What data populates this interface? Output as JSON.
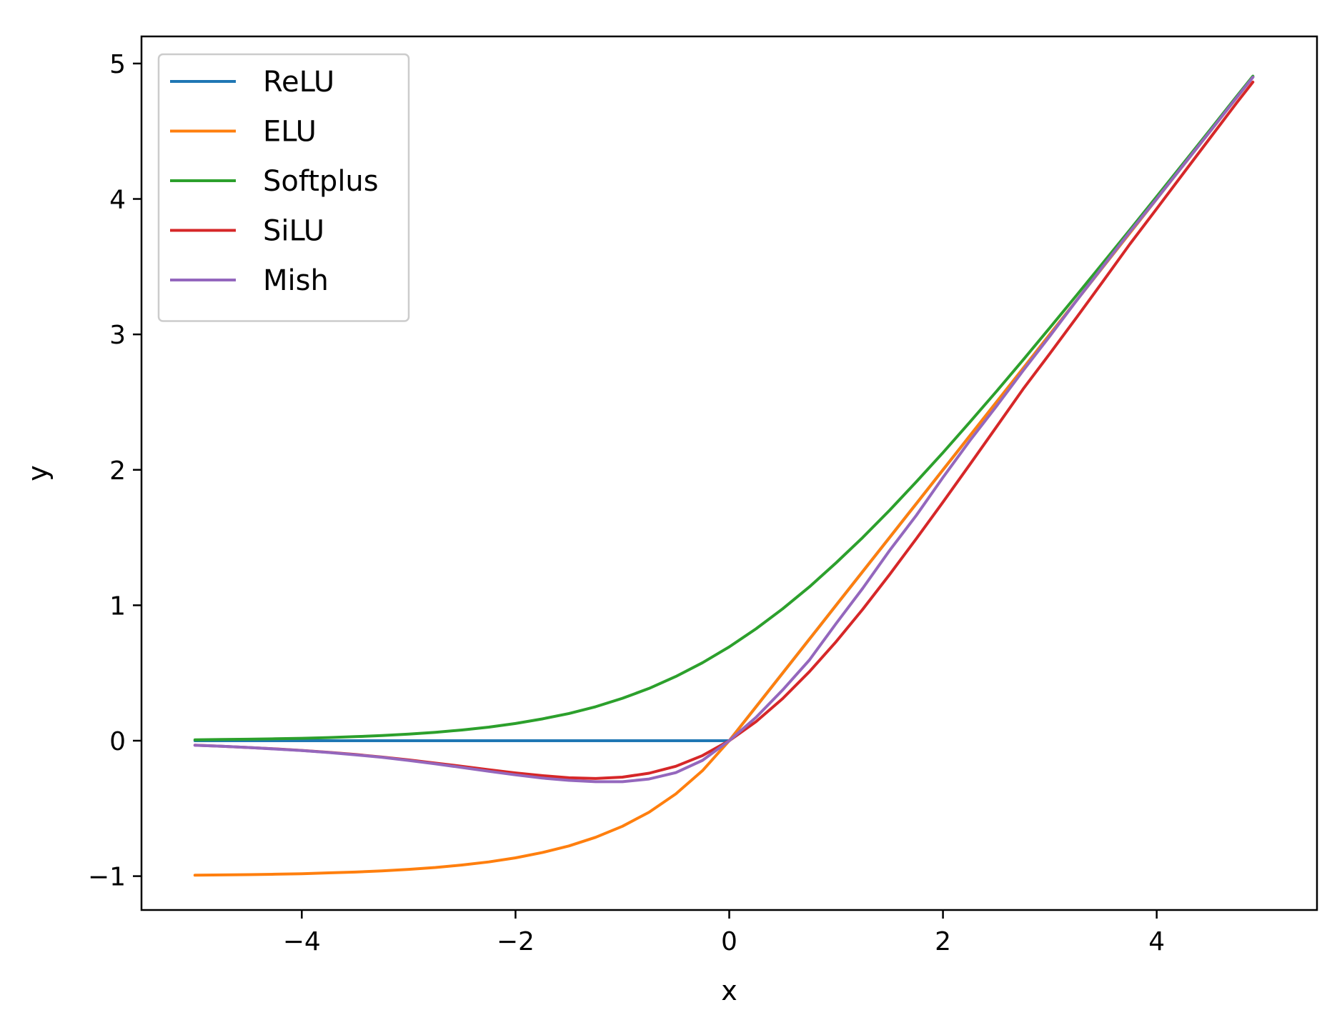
{
  "chart_data": {
    "type": "line",
    "title": "",
    "xlabel": "x",
    "ylabel": "y",
    "xlim": [
      -5.5,
      5.5
    ],
    "ylim": [
      -1.25,
      5.2
    ],
    "xticks": [
      -4,
      -2,
      0,
      2,
      4
    ],
    "yticks": [
      -1,
      0,
      1,
      2,
      3,
      4,
      5
    ],
    "xtick_labels": [
      "−4",
      "−2",
      "0",
      "2",
      "4"
    ],
    "ytick_labels": [
      "−1",
      "0",
      "1",
      "2",
      "3",
      "4",
      "5"
    ],
    "grid": false,
    "legend_position": "upper-left",
    "x": [
      -5.0,
      -4.75,
      -4.5,
      -4.25,
      -4.0,
      -3.75,
      -3.5,
      -3.25,
      -3.0,
      -2.75,
      -2.5,
      -2.25,
      -2.0,
      -1.75,
      -1.5,
      -1.25,
      -1.0,
      -0.75,
      -0.5,
      -0.25,
      0.0,
      0.25,
      0.5,
      0.75,
      1.0,
      1.25,
      1.5,
      1.75,
      2.0,
      2.25,
      2.5,
      2.75,
      3.0,
      3.25,
      3.5,
      3.75,
      4.0,
      4.25,
      4.5,
      4.75,
      4.9
    ],
    "series": [
      {
        "name": "ReLU",
        "color": "#1f77b4",
        "values": [
          0,
          0,
          0,
          0,
          0,
          0,
          0,
          0,
          0,
          0,
          0,
          0,
          0,
          0,
          0,
          0,
          0,
          0,
          0,
          0,
          0,
          0.25,
          0.5,
          0.75,
          1.0,
          1.25,
          1.5,
          1.75,
          2.0,
          2.25,
          2.5,
          2.75,
          3.0,
          3.25,
          3.5,
          3.75,
          4.0,
          4.25,
          4.5,
          4.75,
          4.9
        ]
      },
      {
        "name": "ELU",
        "color": "#ff7f0e",
        "values": [
          -0.993,
          -0.991,
          -0.989,
          -0.986,
          -0.982,
          -0.976,
          -0.97,
          -0.961,
          -0.95,
          -0.936,
          -0.918,
          -0.895,
          -0.865,
          -0.826,
          -0.777,
          -0.713,
          -0.632,
          -0.528,
          -0.393,
          -0.221,
          0.0,
          0.25,
          0.5,
          0.75,
          1.0,
          1.25,
          1.5,
          1.75,
          2.0,
          2.25,
          2.5,
          2.75,
          3.0,
          3.25,
          3.5,
          3.75,
          4.0,
          4.25,
          4.5,
          4.75,
          4.9
        ]
      },
      {
        "name": "Softplus",
        "color": "#2ca02c",
        "values": [
          0.007,
          0.009,
          0.011,
          0.014,
          0.018,
          0.023,
          0.03,
          0.038,
          0.049,
          0.062,
          0.079,
          0.1,
          0.127,
          0.161,
          0.201,
          0.251,
          0.313,
          0.386,
          0.474,
          0.576,
          0.693,
          0.826,
          0.974,
          1.136,
          1.313,
          1.501,
          1.701,
          1.911,
          2.127,
          2.351,
          2.579,
          2.812,
          3.049,
          3.288,
          3.53,
          3.773,
          4.018,
          4.264,
          4.511,
          4.759,
          4.907
        ]
      },
      {
        "name": "SiLU",
        "color": "#d62728",
        "values": [
          -0.033,
          -0.041,
          -0.05,
          -0.06,
          -0.072,
          -0.086,
          -0.102,
          -0.121,
          -0.142,
          -0.165,
          -0.189,
          -0.214,
          -0.238,
          -0.258,
          -0.274,
          -0.279,
          -0.269,
          -0.24,
          -0.189,
          -0.11,
          0.0,
          0.14,
          0.311,
          0.51,
          0.731,
          0.971,
          1.226,
          1.491,
          1.762,
          2.038,
          2.317,
          2.597,
          2.858,
          3.124,
          3.395,
          3.668,
          3.928,
          4.19,
          4.451,
          4.711,
          4.863
        ]
      },
      {
        "name": "Mish",
        "color": "#9467bd",
        "values": [
          -0.034,
          -0.041,
          -0.05,
          -0.061,
          -0.073,
          -0.087,
          -0.104,
          -0.123,
          -0.146,
          -0.171,
          -0.198,
          -0.226,
          -0.252,
          -0.276,
          -0.293,
          -0.303,
          -0.303,
          -0.283,
          -0.236,
          -0.145,
          0.0,
          0.172,
          0.375,
          0.596,
          0.865,
          1.126,
          1.404,
          1.663,
          1.944,
          2.214,
          2.469,
          2.733,
          2.987,
          3.249,
          3.505,
          3.758,
          4.001,
          4.251,
          4.5,
          4.75,
          4.899
        ]
      }
    ]
  }
}
